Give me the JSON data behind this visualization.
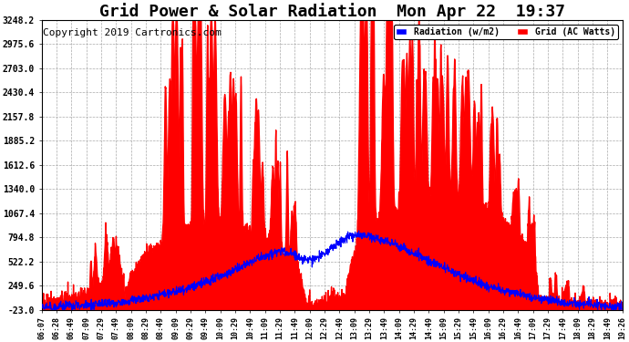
{
  "title": "Grid Power & Solar Radiation  Mon Apr 22  19:37",
  "copyright": "Copyright 2019 Cartronics.com",
  "legend_radiation": "Radiation (w/m2)",
  "legend_grid": "Grid (AC Watts)",
  "yticks": [
    3248.2,
    2975.6,
    2703.0,
    2430.4,
    2157.8,
    1885.2,
    1612.6,
    1340.0,
    1067.4,
    794.8,
    522.2,
    249.6,
    -23.0
  ],
  "ymin": -23.0,
  "ymax": 3248.2,
  "background_color": "#ffffff",
  "plot_bg_color": "#ffffff",
  "grid_color": "#aaaaaa",
  "radiation_color": "#0000ff",
  "grid_power_color": "#ff0000",
  "title_fontsize": 13,
  "copyright_fontsize": 8,
  "xtick_labels": [
    "06:07",
    "06:28",
    "06:49",
    "07:09",
    "07:29",
    "07:49",
    "08:09",
    "08:29",
    "08:49",
    "09:09",
    "09:29",
    "09:49",
    "10:09",
    "10:29",
    "10:49",
    "11:09",
    "11:29",
    "11:49",
    "12:09",
    "12:29",
    "12:49",
    "13:09",
    "13:29",
    "13:49",
    "14:09",
    "14:29",
    "14:49",
    "15:09",
    "15:29",
    "15:49",
    "16:09",
    "16:29",
    "16:49",
    "17:09",
    "17:29",
    "17:49",
    "18:09",
    "18:29",
    "18:49",
    "19:26"
  ]
}
